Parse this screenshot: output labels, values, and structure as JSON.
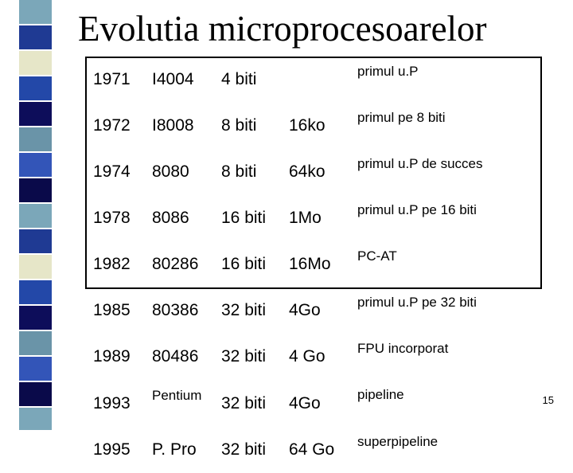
{
  "title": "Evolutia microprocesoarelor",
  "page_number": "15",
  "strip_colors": [
    "#7ba7b9",
    "#1f3a93",
    "#e6e6c8",
    "#2348a8",
    "#0d0d5a",
    "#6a94a8",
    "#3355b8",
    "#0a0a4a"
  ],
  "rows": [
    {
      "year": "1971",
      "cpu": "I4004",
      "bits": "4 biti",
      "mem": "",
      "note": "primul u.P"
    },
    {
      "year": "1972",
      "cpu": "I8008",
      "bits": "8 biti",
      "mem": "16ko",
      "note": "primul pe 8 biti"
    },
    {
      "year": "1974",
      "cpu": "8080",
      "bits": "8 biti",
      "mem": "64ko",
      "note": "primul u.P de succes"
    },
    {
      "year": "1978",
      "cpu": "8086",
      "bits": "16 biti",
      "mem": "1Mo",
      "note": "primul u.P pe 16 biti"
    },
    {
      "year": "1982",
      "cpu": "80286",
      "bits": "16 biti",
      "mem": "16Mo",
      "note": "PC-AT"
    },
    {
      "year": "1985",
      "cpu": "80386",
      "bits": "32 biti",
      "mem": "4Go",
      "note": "primul u.P pe 32 biti"
    },
    {
      "year": "1989",
      "cpu": "80486",
      "bits": "32 biti",
      "mem": "4 Go",
      "note": "FPU incorporat"
    },
    {
      "year": "1993",
      "cpu": "Pentium",
      "bits": "32 biti",
      "mem": "4Go",
      "note": "pipeline"
    },
    {
      "year": "1995",
      "cpu": "P. Pro",
      "bits": "32 biti",
      "mem": "64 Go",
      "note": "superpipeline"
    }
  ]
}
